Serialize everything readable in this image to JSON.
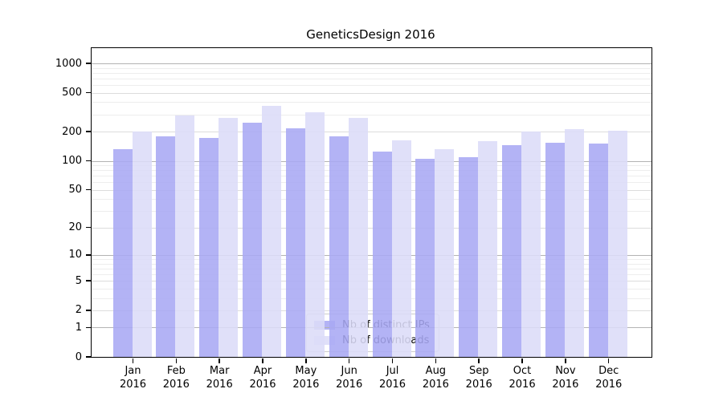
{
  "title": "GeneticsDesign 2016",
  "chart_data": {
    "type": "bar",
    "title": "GeneticsDesign 2016",
    "categories": [
      "Jan",
      "Feb",
      "Mar",
      "Apr",
      "May",
      "Jun",
      "Jul",
      "Aug",
      "Sep",
      "Oct",
      "Nov",
      "Dec"
    ],
    "year_label": "2016",
    "series": [
      {
        "name": "Nb of distinct IPs",
        "color": "#a9a9f4",
        "values": [
          133,
          180,
          173,
          245,
          216,
          179,
          124,
          105,
          110,
          145,
          154,
          151
        ]
      },
      {
        "name": "Nb of downloads",
        "color": "#dcdcf8",
        "values": [
          200,
          290,
          275,
          370,
          317,
          279,
          162,
          132,
          158,
          200,
          210,
          204
        ]
      }
    ],
    "y_ticks": [
      "1000",
      "500",
      "200",
      "100",
      "50",
      "20",
      "10",
      "5",
      "2",
      "1",
      "0"
    ],
    "y_scale": "log10(1+x)",
    "ylim": [
      0,
      1000
    ],
    "grid": true,
    "legend_position": "bottom-center",
    "grid_colors": {
      "decade": "#b3b3b3",
      "labeled": "#dcdcdc",
      "minor": "#ededed"
    }
  }
}
